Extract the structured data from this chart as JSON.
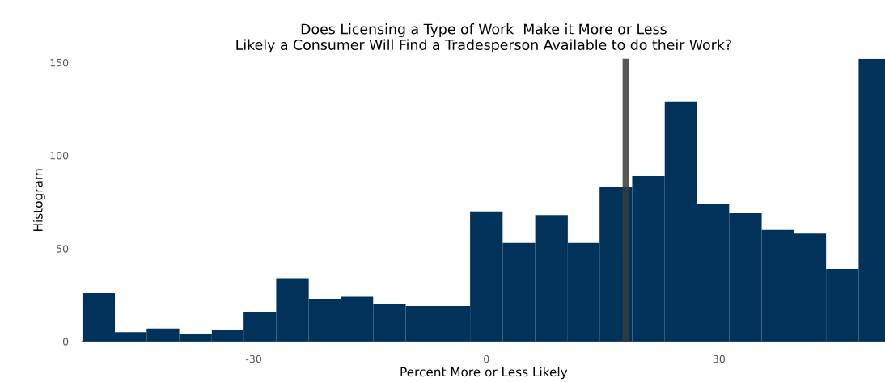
{
  "chart_data": {
    "type": "histogram",
    "title": "Does Licensing a Type of Work  Make it More or Less\nLikely a Consumer Will Find a Tradesperson Available to do their Work?",
    "xlabel": "Percent More or Less Likely",
    "ylabel": "Histogram",
    "bins": [
      -52.1,
      -47.9,
      -43.8,
      -39.6,
      -35.4,
      -31.3,
      -27.1,
      -22.9,
      -18.7,
      -14.6,
      -10.4,
      -6.2,
      -2.1,
      2.1,
      6.3,
      10.5,
      14.6,
      18.8,
      23.0,
      27.2,
      31.3,
      35.5,
      39.7,
      43.8,
      48.0,
      51.4
    ],
    "values": [
      26,
      5,
      7,
      4,
      6,
      16,
      34,
      23,
      24,
      20,
      19,
      19,
      70,
      53,
      68,
      53,
      83,
      89,
      129,
      74,
      69,
      60,
      58,
      39,
      152
    ],
    "color": "#01335a",
    "xlim": [
      -52.1,
      51.4
    ],
    "ylim": [
      0,
      152
    ],
    "xticks": [
      -30,
      0,
      30
    ],
    "yticks": [
      0,
      50,
      100,
      150
    ],
    "ref_lines": [
      {
        "axis": "x",
        "value": 18,
        "color": "#3a3a3a"
      }
    ],
    "grid": false,
    "legend": false
  }
}
